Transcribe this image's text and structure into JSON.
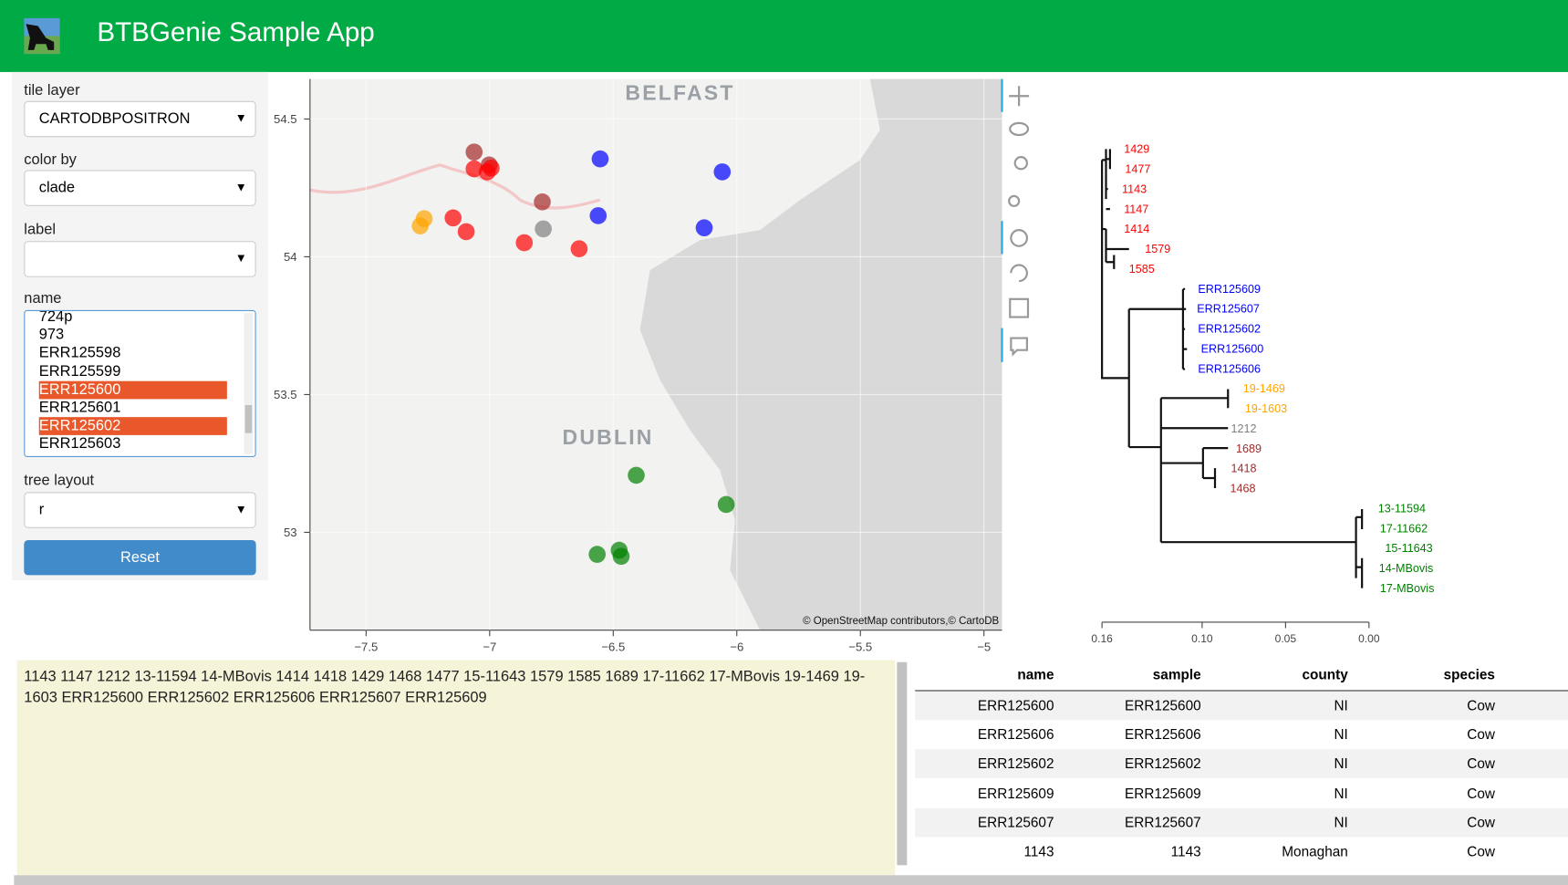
{
  "header": {
    "title": "BTBGenie Sample App"
  },
  "sidebar": {
    "controls": [
      {
        "label": "tile layer",
        "value": "CARTODBPOSITRON"
      },
      {
        "label": "color by",
        "value": "clade"
      },
      {
        "label": "label",
        "value": ""
      }
    ],
    "name_label": "name",
    "name_options": [
      {
        "label": "724p",
        "selected": false
      },
      {
        "label": "973",
        "selected": false
      },
      {
        "label": "ERR125598",
        "selected": false
      },
      {
        "label": "ERR125599",
        "selected": false
      },
      {
        "label": "ERR125600",
        "selected": true
      },
      {
        "label": "ERR125601",
        "selected": false
      },
      {
        "label": "ERR125602",
        "selected": true
      },
      {
        "label": "ERR125603",
        "selected": false
      }
    ],
    "tree_layout": {
      "label": "tree layout",
      "value": "r"
    },
    "reset": "Reset"
  },
  "map": {
    "type": "scatter",
    "places": [
      "BELFAST",
      "DUBLIN"
    ],
    "attribution": "© OpenStreetMap contributors,© CartoDB",
    "xlim": [
      -7.727,
      -4.927
    ],
    "ylim": [
      52.645,
      54.645
    ],
    "xticks": [
      {
        "value": -7.5,
        "label": "−7.5"
      },
      {
        "value": -7,
        "label": "−7"
      },
      {
        "value": -6.5,
        "label": "−6.5"
      },
      {
        "value": -6,
        "label": "−6"
      },
      {
        "value": -5.5,
        "label": "−5.5"
      },
      {
        "value": -5,
        "label": "−5"
      }
    ],
    "yticks": [
      54.5,
      54,
      53.5,
      53
    ],
    "points": [
      {
        "x": -7.063,
        "y": 54.38,
        "color": "#a52a2a"
      },
      {
        "x": -7.002,
        "y": 54.333,
        "color": "#a52a2a"
      },
      {
        "x": -6.787,
        "y": 54.199,
        "color": "#a52a2a"
      },
      {
        "x": -7.063,
        "y": 54.319,
        "color": "#ff0000"
      },
      {
        "x": -7.01,
        "y": 54.308,
        "color": "#ff0000"
      },
      {
        "x": -6.994,
        "y": 54.322,
        "color": "#ff0000"
      },
      {
        "x": -7.148,
        "y": 54.141,
        "color": "#ff0000"
      },
      {
        "x": -7.095,
        "y": 54.091,
        "color": "#ff0000"
      },
      {
        "x": -6.86,
        "y": 54.051,
        "color": "#ff0000"
      },
      {
        "x": -6.638,
        "y": 54.029,
        "color": "#ff0000"
      },
      {
        "x": -6.783,
        "y": 54.101,
        "color": "#808080"
      },
      {
        "x": -6.553,
        "y": 54.355,
        "color": "#0000ff"
      },
      {
        "x": -6.561,
        "y": 54.149,
        "color": "#0000ff"
      },
      {
        "x": -6.059,
        "y": 54.308,
        "color": "#0000ff"
      },
      {
        "x": -6.132,
        "y": 54.105,
        "color": "#0000ff"
      },
      {
        "x": -7.265,
        "y": 54.138,
        "color": "#ffa500"
      },
      {
        "x": -7.281,
        "y": 54.112,
        "color": "#ffa500"
      },
      {
        "x": -6.407,
        "y": 53.207,
        "color": "#008000"
      },
      {
        "x": -6.043,
        "y": 53.101,
        "color": "#008000"
      },
      {
        "x": -6.565,
        "y": 52.92,
        "color": "#008000"
      },
      {
        "x": -6.476,
        "y": 52.935,
        "color": "#008000"
      },
      {
        "x": -6.468,
        "y": 52.913,
        "color": "#008000"
      }
    ]
  },
  "tree": {
    "leaves": [
      {
        "label": "1429",
        "color": "#ff0000"
      },
      {
        "label": "1477",
        "color": "#ff0000"
      },
      {
        "label": "1143",
        "color": "#ff0000"
      },
      {
        "label": "1147",
        "color": "#ff0000"
      },
      {
        "label": "1414",
        "color": "#ff0000"
      },
      {
        "label": "1579",
        "color": "#ff0000"
      },
      {
        "label": "1585",
        "color": "#ff0000"
      },
      {
        "label": "ERR125609",
        "color": "#0000ff"
      },
      {
        "label": "ERR125607",
        "color": "#0000ff"
      },
      {
        "label": "ERR125602",
        "color": "#0000ff"
      },
      {
        "label": "ERR125600",
        "color": "#0000ff"
      },
      {
        "label": "ERR125606",
        "color": "#0000ff"
      },
      {
        "label": "19-1469",
        "color": "#ffa500"
      },
      {
        "label": "19-1603",
        "color": "#ffa500"
      },
      {
        "label": "1212",
        "color": "#808080"
      },
      {
        "label": "1689",
        "color": "#a52a2a"
      },
      {
        "label": "1418",
        "color": "#a52a2a"
      },
      {
        "label": "1468",
        "color": "#a52a2a"
      },
      {
        "label": "13-11594",
        "color": "#008000"
      },
      {
        "label": "17-11662",
        "color": "#008000"
      },
      {
        "label": "15-11643",
        "color": "#008000"
      },
      {
        "label": "14-MBovis",
        "color": "#008000"
      },
      {
        "label": "17-MBovis",
        "color": "#008000"
      }
    ],
    "xlim": [
      0.16,
      0
    ],
    "xticks": [
      0.16,
      {
        "value": 0.1,
        "label": "0.10"
      },
      0.05,
      {
        "value": 0,
        "label": "0.00"
      }
    ]
  },
  "selection_text": "1143 1147 1212 13-11594 14-MBovis 1414 1418 1429 1468 1477 15-11643 1579 1585 1689 17-11662 17-MBovis 19-1469 19-1603 ERR125600 ERR125602 ERR125606 ERR125607 ERR125609",
  "table": {
    "columns": [
      "name",
      "sample",
      "county",
      "species"
    ],
    "rows": [
      [
        "ERR125600",
        "ERR125600",
        "NI",
        "Cow"
      ],
      [
        "ERR125606",
        "ERR125606",
        "NI",
        "Cow"
      ],
      [
        "ERR125602",
        "ERR125602",
        "NI",
        "Cow"
      ],
      [
        "ERR125609",
        "ERR125609",
        "NI",
        "Cow"
      ],
      [
        "ERR125607",
        "ERR125607",
        "NI",
        "Cow"
      ],
      [
        "1143",
        "1143",
        "Monaghan",
        "Cow"
      ]
    ]
  }
}
